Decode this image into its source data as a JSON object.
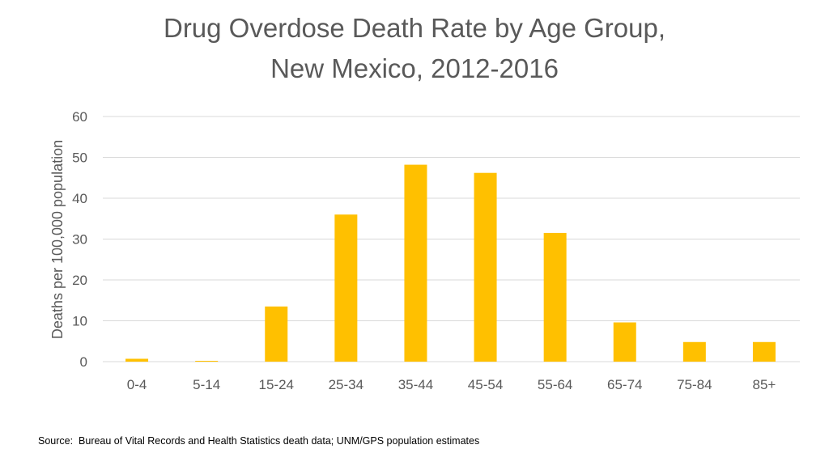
{
  "chart_data": {
    "type": "bar",
    "title_lines": [
      "Drug Overdose Death Rate by Age Group,",
      "New Mexico, 2012-2016"
    ],
    "xlabel": "",
    "ylabel": "Deaths per 100,000 population",
    "categories": [
      "0-4",
      "5-14",
      "15-24",
      "25-34",
      "35-44",
      "45-54",
      "55-64",
      "65-74",
      "75-84",
      "85+"
    ],
    "values": [
      0.7,
      0.2,
      13.5,
      36.0,
      48.2,
      46.2,
      31.5,
      9.6,
      4.8,
      4.8
    ],
    "ylim": [
      0,
      60
    ],
    "yticks": [
      "0",
      "10",
      "20",
      "30",
      "40",
      "50",
      "60"
    ],
    "grid": true,
    "legend": "none",
    "bar_color": "#FFC000",
    "grid_color": "#D9D9D9"
  },
  "source": "Source:  Bureau of Vital Records and Health Statistics death data; UNM/GPS population estimates"
}
